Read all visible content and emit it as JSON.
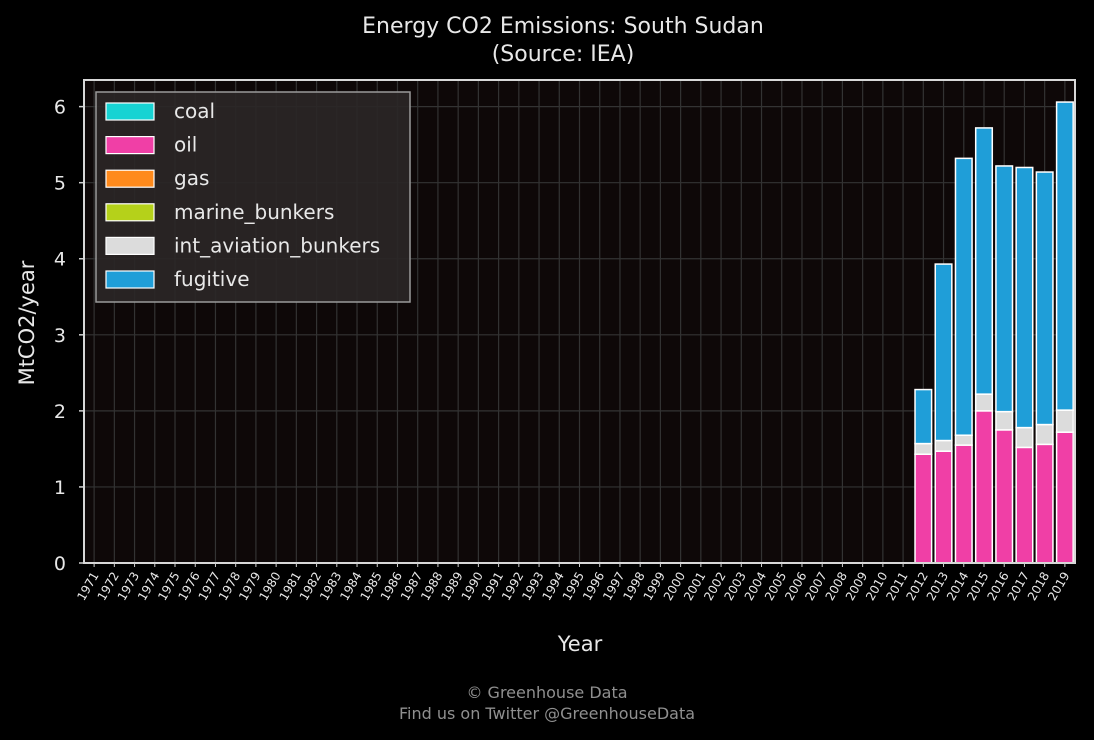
{
  "chart_data": {
    "type": "bar",
    "stacked": true,
    "title": "Energy CO2 Emissions: South Sudan",
    "subtitle": "(Source: IEA)",
    "xlabel": "Year",
    "ylabel": "MtCO2/year",
    "ylim": [
      0,
      6.35
    ],
    "yticks": [
      0,
      1,
      2,
      3,
      4,
      5,
      6
    ],
    "grid": true,
    "legend_position": "top-left",
    "categories": [
      "1971",
      "1972",
      "1973",
      "1974",
      "1975",
      "1976",
      "1977",
      "1978",
      "1979",
      "1980",
      "1981",
      "1982",
      "1983",
      "1984",
      "1985",
      "1986",
      "1987",
      "1988",
      "1989",
      "1990",
      "1991",
      "1992",
      "1993",
      "1994",
      "1995",
      "1996",
      "1997",
      "1998",
      "1999",
      "2000",
      "2001",
      "2002",
      "2003",
      "2004",
      "2005",
      "2006",
      "2007",
      "2008",
      "2009",
      "2010",
      "2011",
      "2012",
      "2013",
      "2014",
      "2015",
      "2016",
      "2017",
      "2018",
      "2019"
    ],
    "series": [
      {
        "name": "coal",
        "color": "#17d3d3",
        "values": [
          0,
          0,
          0,
          0,
          0,
          0,
          0,
          0,
          0,
          0,
          0,
          0,
          0,
          0,
          0,
          0,
          0,
          0,
          0,
          0,
          0,
          0,
          0,
          0,
          0,
          0,
          0,
          0,
          0,
          0,
          0,
          0,
          0,
          0,
          0,
          0,
          0,
          0,
          0,
          0,
          0,
          0,
          0,
          0,
          0,
          0,
          0,
          0,
          0
        ]
      },
      {
        "name": "oil",
        "color": "#f03fa6",
        "values": [
          0,
          0,
          0,
          0,
          0,
          0,
          0,
          0,
          0,
          0,
          0,
          0,
          0,
          0,
          0,
          0,
          0,
          0,
          0,
          0,
          0,
          0,
          0,
          0,
          0,
          0,
          0,
          0,
          0,
          0,
          0,
          0,
          0,
          0,
          0,
          0,
          0,
          0,
          0,
          0,
          0,
          1.43,
          1.47,
          1.55,
          2.0,
          1.75,
          1.52,
          1.56,
          1.72
        ]
      },
      {
        "name": "gas",
        "color": "#ff8a1c",
        "values": [
          0,
          0,
          0,
          0,
          0,
          0,
          0,
          0,
          0,
          0,
          0,
          0,
          0,
          0,
          0,
          0,
          0,
          0,
          0,
          0,
          0,
          0,
          0,
          0,
          0,
          0,
          0,
          0,
          0,
          0,
          0,
          0,
          0,
          0,
          0,
          0,
          0,
          0,
          0,
          0,
          0,
          0,
          0,
          0,
          0,
          0,
          0,
          0,
          0
        ]
      },
      {
        "name": "marine_bunkers",
        "color": "#b5d11a",
        "values": [
          0,
          0,
          0,
          0,
          0,
          0,
          0,
          0,
          0,
          0,
          0,
          0,
          0,
          0,
          0,
          0,
          0,
          0,
          0,
          0,
          0,
          0,
          0,
          0,
          0,
          0,
          0,
          0,
          0,
          0,
          0,
          0,
          0,
          0,
          0,
          0,
          0,
          0,
          0,
          0,
          0,
          0,
          0,
          0,
          0,
          0,
          0,
          0,
          0
        ]
      },
      {
        "name": "int_aviation_bunkers",
        "color": "#dcdcdc",
        "values": [
          0,
          0,
          0,
          0,
          0,
          0,
          0,
          0,
          0,
          0,
          0,
          0,
          0,
          0,
          0,
          0,
          0,
          0,
          0,
          0,
          0,
          0,
          0,
          0,
          0,
          0,
          0,
          0,
          0,
          0,
          0,
          0,
          0,
          0,
          0,
          0,
          0,
          0,
          0,
          0,
          0,
          0.14,
          0.14,
          0.13,
          0.22,
          0.24,
          0.26,
          0.26,
          0.29
        ]
      },
      {
        "name": "fugitive",
        "color": "#1f9ed8",
        "values": [
          0,
          0,
          0,
          0,
          0,
          0,
          0,
          0,
          0,
          0,
          0,
          0,
          0,
          0,
          0,
          0,
          0,
          0,
          0,
          0,
          0,
          0,
          0,
          0,
          0,
          0,
          0,
          0,
          0,
          0,
          0,
          0,
          0,
          0,
          0,
          0,
          0,
          0,
          0,
          0,
          0,
          0.71,
          2.32,
          3.64,
          3.5,
          3.23,
          3.42,
          3.32,
          4.05
        ]
      }
    ]
  },
  "footer": {
    "credit": "© Greenhouse Data",
    "twitter": "Find us on Twitter @GreenhouseData"
  },
  "colors": {
    "background": "#000000",
    "plot_background": "#0e0808",
    "grid": "#333333",
    "text": "#e8e8e8",
    "footer_text": "#8f8f8f"
  }
}
